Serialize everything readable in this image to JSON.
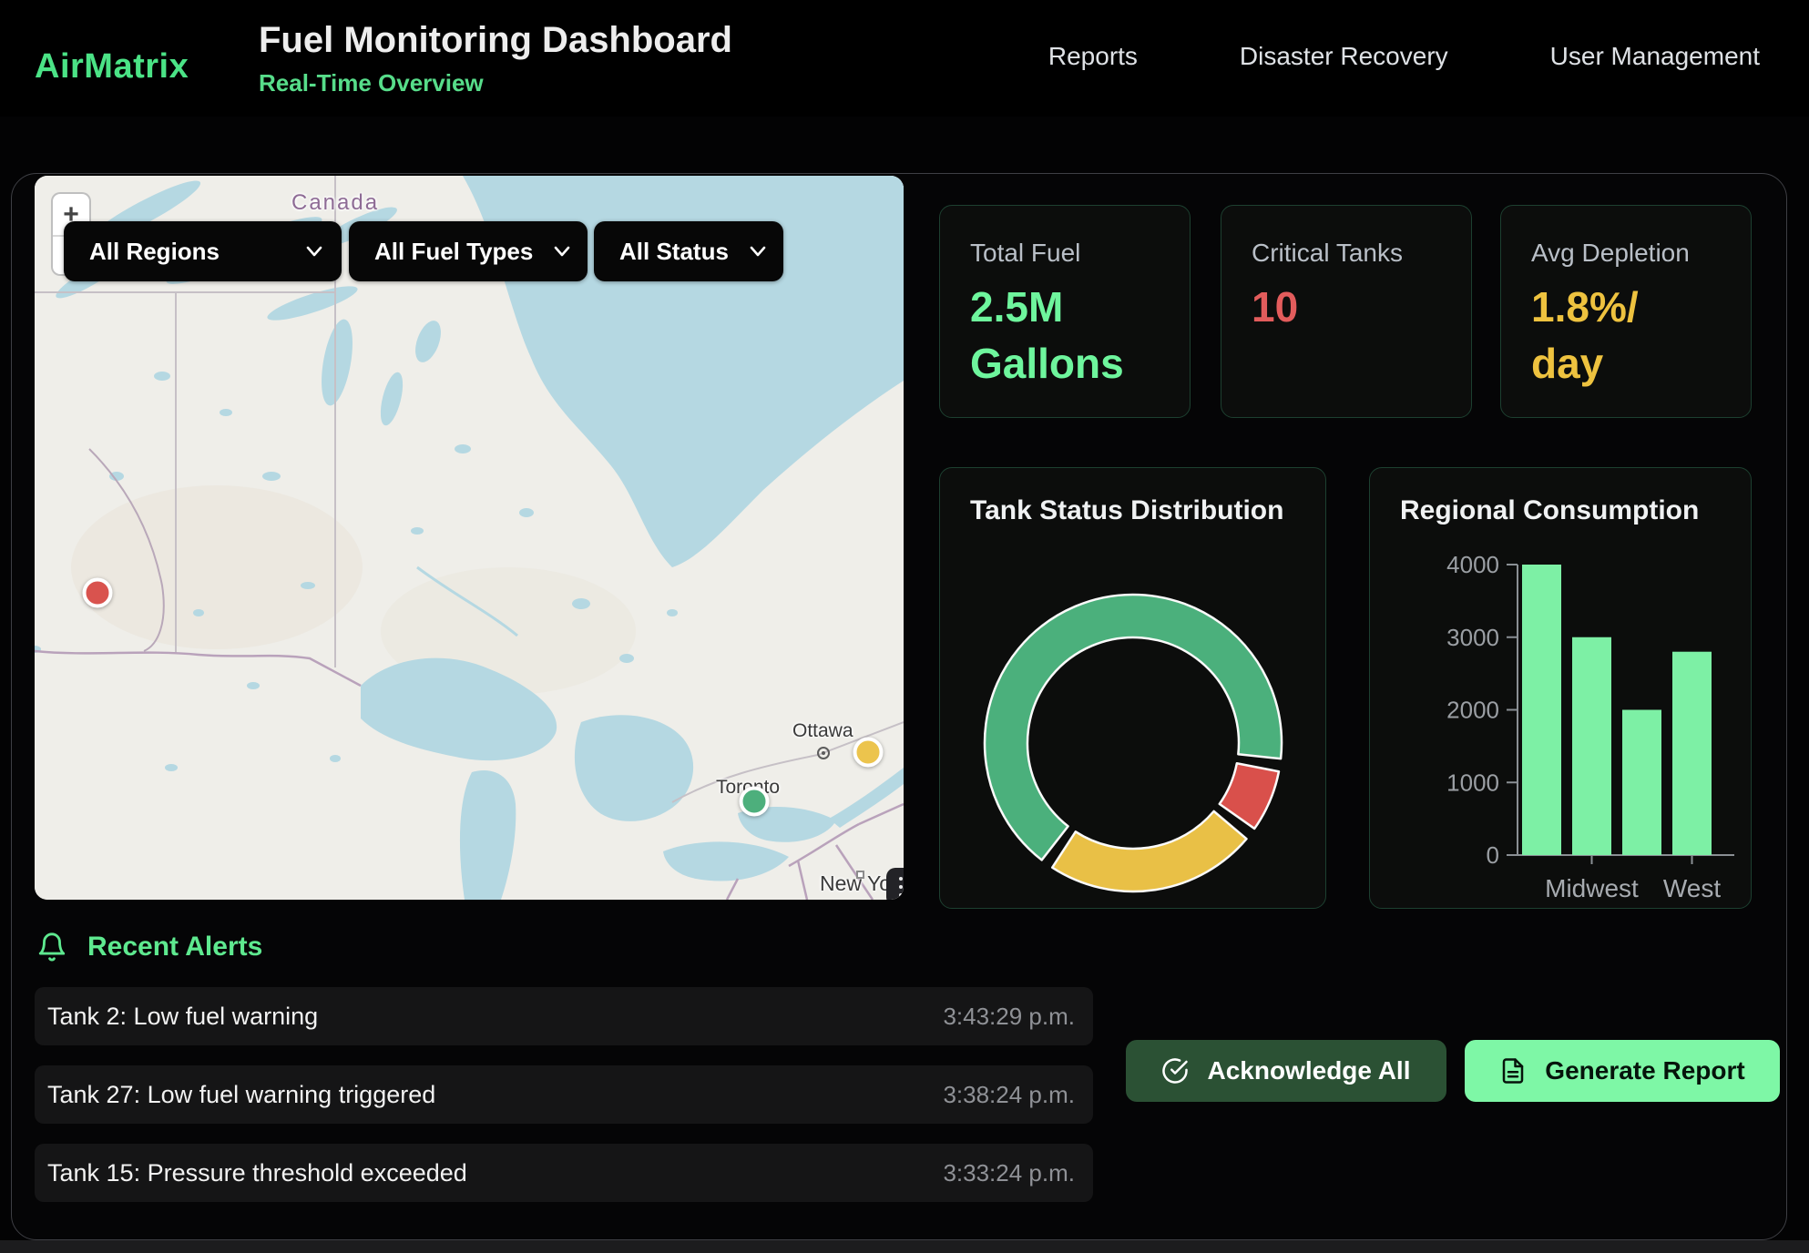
{
  "header": {
    "brand": "AirMatrix",
    "title": "Fuel Monitoring Dashboard",
    "subtitle": "Real-Time Overview",
    "nav": [
      {
        "label": "Reports"
      },
      {
        "label": "Disaster Recovery"
      },
      {
        "label": "User Management"
      }
    ]
  },
  "map": {
    "zoom_in": "+",
    "zoom_out": "−",
    "filters": [
      {
        "label": "All Regions"
      },
      {
        "label": "All Fuel Types"
      },
      {
        "label": "All Status"
      }
    ],
    "labels": {
      "country": "Canada",
      "capital": "Ottawa",
      "city": "Toronto",
      "city2": "New York"
    },
    "markers": [
      {
        "status": "critical",
        "color": "#d9534e"
      },
      {
        "status": "warning",
        "color": "#ecc44d"
      },
      {
        "status": "normal",
        "color": "#4daf7c"
      }
    ]
  },
  "stats": [
    {
      "label": "Total Fuel",
      "value": "2.5M\nGallons",
      "color": "#6ef59d"
    },
    {
      "label": "Critical Tanks",
      "value": "10",
      "color": "#e25c5c"
    },
    {
      "label": "Avg Depletion",
      "value": "1.8%/\nday",
      "color": "#eec23f"
    }
  ],
  "chart_data": [
    {
      "type": "pie",
      "title": "Tank Status Distribution",
      "donut": true,
      "legend": "none",
      "start_angle_deg": 218,
      "gap_deg": 5,
      "segments": [
        {
          "label": "normal",
          "color": "#4bb07c",
          "percent": 69
        },
        {
          "label": "critical",
          "color": "#d9504b",
          "percent": 7
        },
        {
          "label": "warning",
          "color": "#e9c046",
          "percent": 24
        }
      ]
    },
    {
      "type": "bar",
      "title": "Regional Consumption",
      "categories": [
        "",
        "Midwest",
        "",
        "West"
      ],
      "values": [
        4000,
        3000,
        2000,
        2800
      ],
      "yticks": [
        0,
        1000,
        2000,
        3000,
        4000
      ],
      "ylim": [
        0,
        4000
      ],
      "grid": false,
      "bar_color": "#7df0a5"
    }
  ],
  "alerts": {
    "title": "Recent Alerts",
    "items": [
      {
        "message": "Tank 2: Low fuel warning",
        "time": "3:43:29 p.m."
      },
      {
        "message": "Tank 27: Low fuel warning triggered",
        "time": "3:38:24 p.m."
      },
      {
        "message": "Tank 15: Pressure threshold exceeded",
        "time": "3:33:24 p.m."
      }
    ]
  },
  "actions": {
    "acknowledge_label": "Acknowledge All",
    "generate_label": "Generate Report"
  },
  "colors": {
    "accent_green": "#5ee98f",
    "value_green": "#6ef59d",
    "critical_red": "#e25c5c",
    "warning_amber": "#eec23f",
    "bar_green": "#7df0a5",
    "map_water": "#b5d8e2",
    "map_land": "#efeee9"
  }
}
